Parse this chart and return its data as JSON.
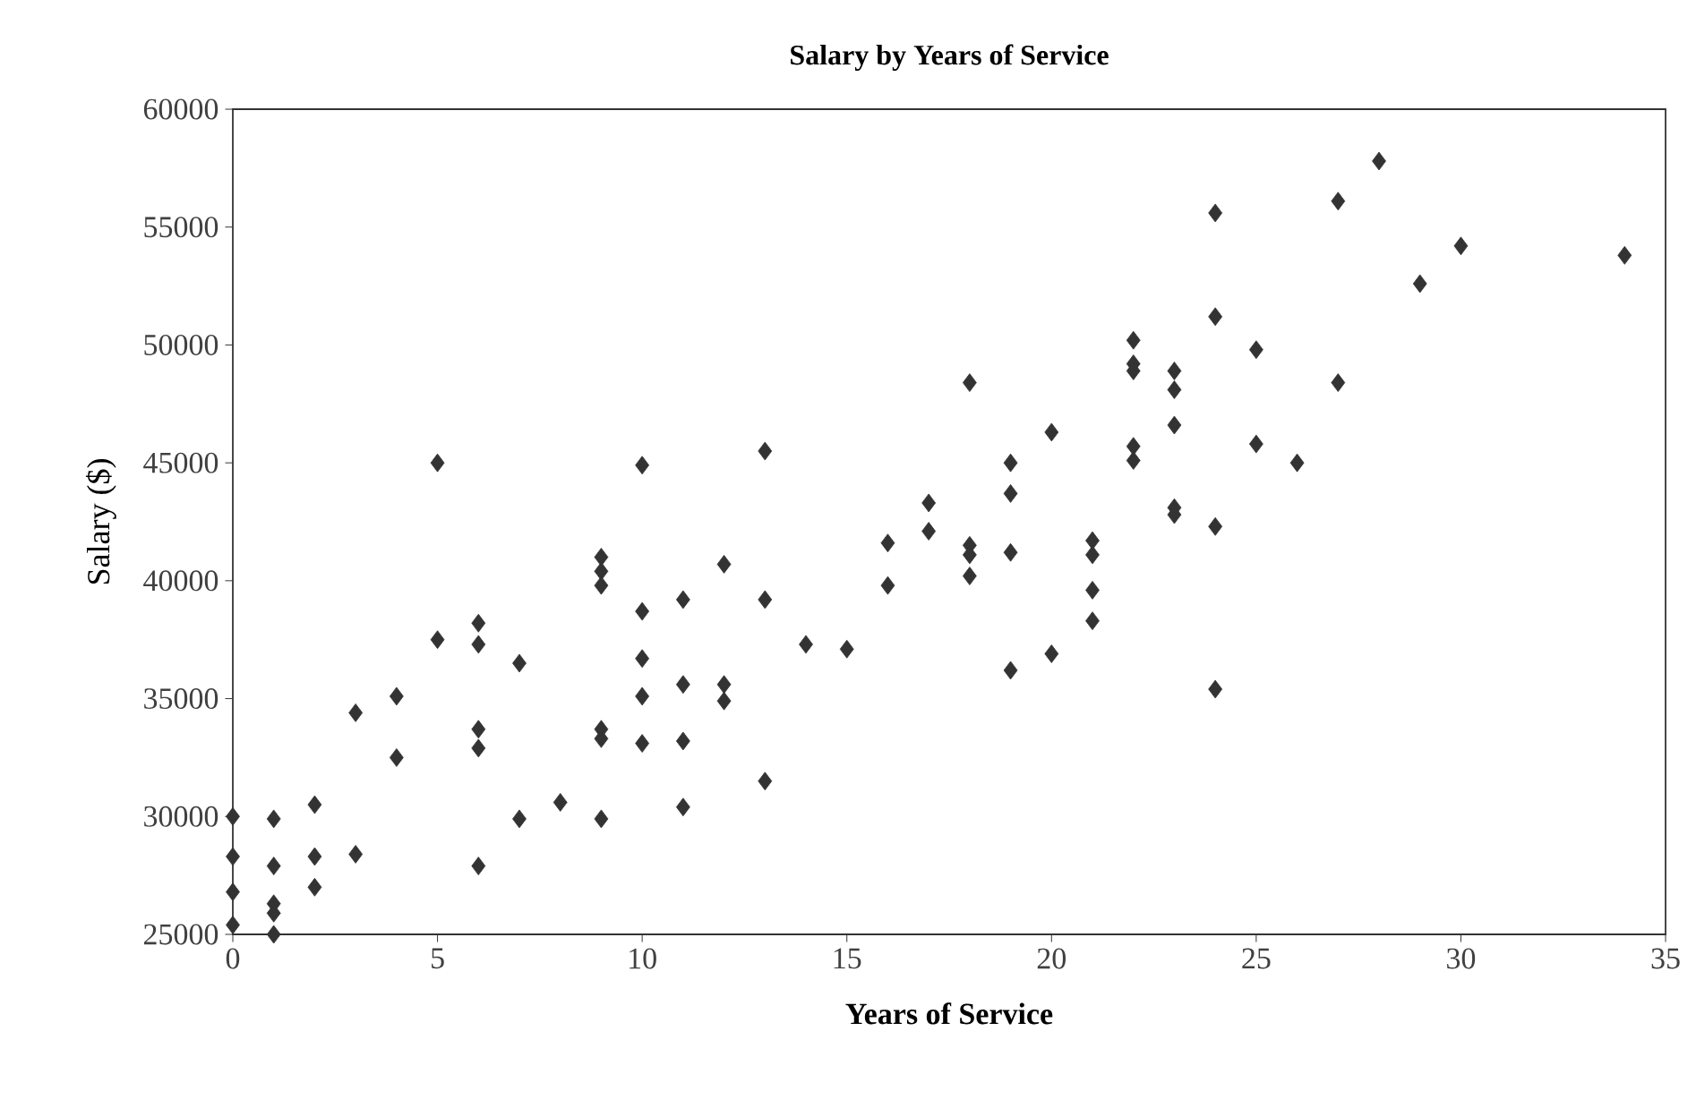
{
  "chart_data": {
    "type": "scatter",
    "title": "Salary by Years of Service",
    "xlabel": "Years of Service",
    "ylabel": "Salary ($)",
    "xlim": [
      0,
      35
    ],
    "xticks": [
      0,
      5,
      10,
      15,
      20,
      25,
      30,
      35
    ],
    "ylim": [
      25000,
      60000
    ],
    "yticks": [
      25000,
      30000,
      35000,
      40000,
      45000,
      50000,
      55000,
      60000
    ],
    "grid": false,
    "marker": "diamond",
    "series": [
      {
        "color": "#333333",
        "x": [
          0,
          0,
          0,
          0,
          1,
          1,
          1,
          1,
          1,
          2,
          2,
          2,
          3,
          3,
          4,
          4,
          5,
          5,
          6,
          6,
          6,
          6,
          6,
          7,
          7,
          8,
          9,
          9,
          9,
          9,
          9,
          9,
          10,
          10,
          10,
          10,
          10,
          11,
          11,
          11,
          11,
          12,
          12,
          12,
          13,
          13,
          13,
          14,
          15,
          16,
          16,
          17,
          17,
          18,
          18,
          18,
          18,
          19,
          19,
          19,
          19,
          20,
          20,
          21,
          21,
          21,
          21,
          22,
          22,
          22,
          22,
          22,
          23,
          23,
          23,
          23,
          23,
          24,
          24,
          24,
          24,
          25,
          25,
          26,
          27,
          27,
          28,
          29,
          30,
          34
        ],
        "values": [
          30000,
          28300,
          26800,
          25400,
          29900,
          27900,
          26300,
          25900,
          25000,
          30500,
          28300,
          27000,
          28400,
          34400,
          35100,
          32500,
          45000,
          37500,
          38200,
          37300,
          33700,
          32900,
          27900,
          36500,
          29900,
          30600,
          41000,
          40400,
          39800,
          33700,
          33300,
          29900,
          44900,
          38700,
          36700,
          35100,
          33100,
          39200,
          35600,
          33200,
          30400,
          40700,
          35600,
          34900,
          45500,
          39200,
          31500,
          37300,
          37100,
          41600,
          39800,
          43300,
          42100,
          48400,
          41500,
          41100,
          40200,
          45000,
          43700,
          41200,
          36200,
          46300,
          36900,
          41700,
          41100,
          39600,
          38300,
          50200,
          49200,
          48900,
          45700,
          45100,
          48900,
          48100,
          46600,
          43100,
          42800,
          55600,
          51200,
          42300,
          35400,
          49800,
          45800,
          45000,
          56100,
          48400,
          57800,
          52600,
          54200,
          53800
        ]
      }
    ]
  }
}
